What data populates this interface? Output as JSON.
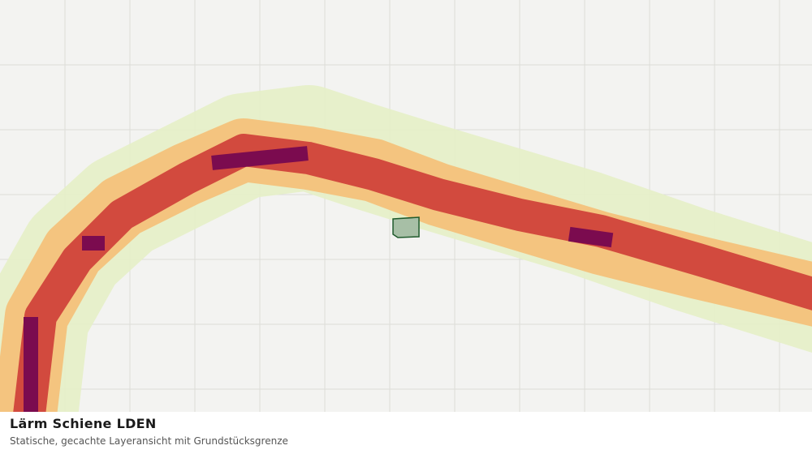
{
  "header": {
    "title": "Lärm Schiene LDEN",
    "subtitle": "Statische, gecachte Layeransicht mit Grundstücksgrenze"
  }
}
